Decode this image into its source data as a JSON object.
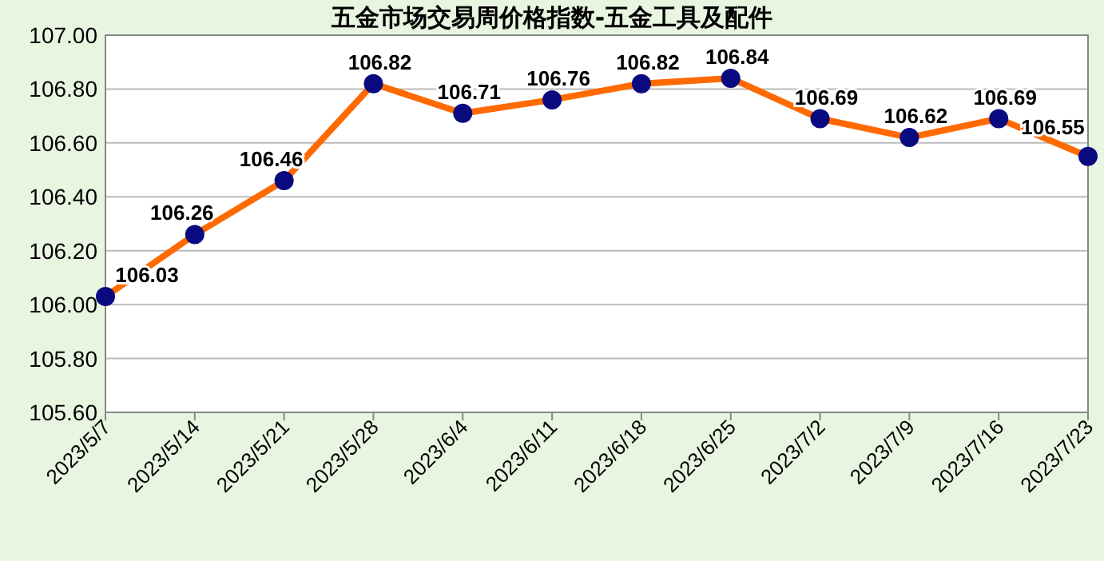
{
  "chart_data": {
    "type": "line",
    "title": "五金市场交易周价格指数-五金工具及配件",
    "categories": [
      "2023/5/7",
      "2023/5/14",
      "2023/5/21",
      "2023/5/28",
      "2023/6/4",
      "2023/6/11",
      "2023/6/18",
      "2023/6/25",
      "2023/7/2",
      "2023/7/9",
      "2023/7/16",
      "2023/7/23"
    ],
    "series": [
      {
        "color": "#ff6a00",
        "values": [
          106.03,
          106.26,
          106.46,
          106.82,
          106.71,
          106.76,
          106.82,
          106.84,
          106.69,
          106.62,
          106.69,
          106.55
        ]
      }
    ],
    "ylim": [
      105.6,
      107
    ],
    "yticks": [
      {
        "value": 105.6,
        "label": "105.60"
      },
      {
        "value": 105.8,
        "label": "105.80"
      },
      {
        "value": 106,
        "label": "106.00"
      },
      {
        "value": 106.2,
        "label": "106.20"
      },
      {
        "value": 106.4,
        "label": "106.40"
      },
      {
        "value": 106.6,
        "label": "106.60"
      },
      {
        "value": 106.8,
        "label": "106.80"
      },
      {
        "value": 107,
        "label": "107.00"
      }
    ],
    "grid": "y",
    "marker": "circle",
    "line_style": "solid",
    "data_labels": true
  }
}
